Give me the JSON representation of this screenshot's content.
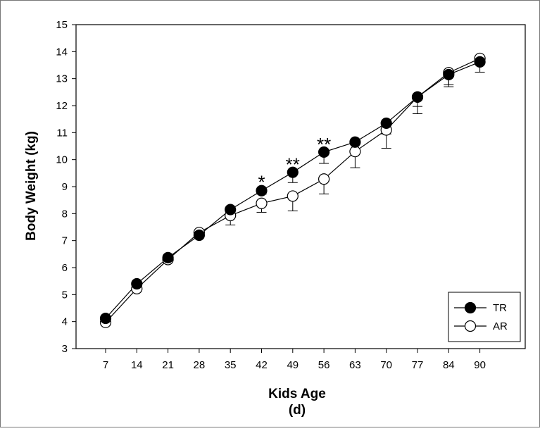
{
  "chart_data": {
    "type": "line",
    "xlabel": "Kids Age",
    "xlabel_unit": "(d)",
    "ylabel": "Body Weight (kg)",
    "ylim": [
      3,
      15
    ],
    "yticks": [
      "3",
      "4",
      "5",
      "6",
      "7",
      "8",
      "9",
      "10",
      "11",
      "12",
      "13",
      "14",
      "15"
    ],
    "x": [
      7,
      14,
      21,
      28,
      35,
      42,
      49,
      56,
      63,
      70,
      77,
      84,
      90
    ],
    "x_tick_labels": [
      "7",
      "14",
      "21",
      "28",
      "35",
      "42",
      "49",
      "56",
      "63",
      "70",
      "77",
      "84",
      "90"
    ],
    "series": [
      {
        "name": "TR",
        "marker": "filled-circle",
        "color": "#000000",
        "values": [
          4.12,
          5.4,
          6.37,
          7.2,
          8.15,
          8.85,
          9.53,
          10.28,
          10.65,
          11.35,
          12.32,
          13.15,
          13.62
        ],
        "error": [
          0.05,
          0.05,
          0.06,
          0.1,
          0.1,
          0.13,
          0.38,
          0.42,
          0.3,
          0.4,
          0.35,
          0.45,
          0.38
        ]
      },
      {
        "name": "AR",
        "marker": "open-circle",
        "color": "#000000",
        "values": [
          3.97,
          5.22,
          6.3,
          7.3,
          7.93,
          8.38,
          8.65,
          9.28,
          10.3,
          11.1,
          12.32,
          13.22,
          13.75
        ],
        "error": [
          0.05,
          0.05,
          0.06,
          0.1,
          0.35,
          0.33,
          0.55,
          0.55,
          0.6,
          0.68,
          0.62,
          0.45,
          0.15
        ]
      }
    ],
    "annotations": [
      {
        "x": 42,
        "y": 9.3,
        "text": "*"
      },
      {
        "x": 49,
        "y": 9.95,
        "text": "**"
      },
      {
        "x": 56,
        "y": 10.7,
        "text": "**"
      }
    ],
    "legend": {
      "position": "bottom-right",
      "entries": [
        "TR",
        "AR"
      ]
    },
    "grid": false
  }
}
